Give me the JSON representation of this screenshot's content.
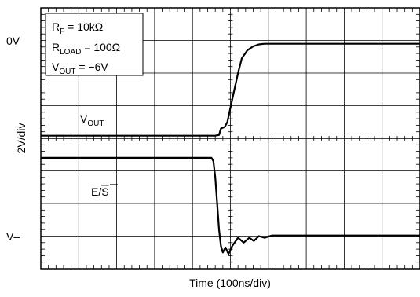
{
  "chart_data": {
    "type": "line",
    "xlabel": "Time (100ns/div)",
    "ylabel": "2V/div",
    "grid": true,
    "x_divisions": 10,
    "y_divisions": 8,
    "x_units_per_div": "100ns",
    "y_units_per_div": "2V",
    "conditions": [
      "R_F = 10kΩ",
      "R_LOAD = 100Ω",
      "V_OUT = −6V"
    ],
    "left_labels": {
      "top": "0V",
      "bottom": "V–"
    },
    "series": [
      {
        "name": "V_OUT",
        "color": "#000000",
        "points": [
          [
            0.0,
            0.08
          ],
          [
            4.6,
            0.08
          ],
          [
            4.7,
            0.1
          ],
          [
            4.75,
            0.3
          ],
          [
            4.85,
            0.35
          ],
          [
            4.92,
            0.5
          ],
          [
            5.05,
            1.2
          ],
          [
            5.2,
            2.0
          ],
          [
            5.3,
            2.45
          ],
          [
            5.45,
            2.7
          ],
          [
            5.6,
            2.82
          ],
          [
            5.75,
            2.88
          ],
          [
            5.9,
            2.9
          ],
          [
            10.0,
            2.9
          ]
        ]
      },
      {
        "name": "E/S",
        "color": "#000000",
        "points": [
          [
            0.0,
            -0.6
          ],
          [
            4.5,
            -0.6
          ],
          [
            4.55,
            -0.7
          ],
          [
            4.6,
            -1.2
          ],
          [
            4.65,
            -2.0
          ],
          [
            4.7,
            -2.8
          ],
          [
            4.75,
            -3.3
          ],
          [
            4.8,
            -3.5
          ],
          [
            4.87,
            -3.35
          ],
          [
            4.95,
            -3.55
          ],
          [
            5.05,
            -3.3
          ],
          [
            5.2,
            -3.05
          ],
          [
            5.35,
            -3.2
          ],
          [
            5.5,
            -3.05
          ],
          [
            5.62,
            -3.15
          ],
          [
            5.75,
            -3.0
          ],
          [
            5.9,
            -3.05
          ],
          [
            6.1,
            -2.98
          ],
          [
            10.0,
            -2.98
          ]
        ]
      }
    ]
  },
  "annotations": {
    "rf_label": "R",
    "rf_sub": "F",
    "rf_value": " = 10kΩ",
    "rload_label": "R",
    "rload_sub": "LOAD",
    "rload_value": " = 100Ω",
    "vout_label": "V",
    "vout_sub": "OUT",
    "vout_value": " = −6V",
    "trace_vout_label": "V",
    "trace_vout_sub": "OUT",
    "trace_es_label": "E/",
    "trace_es_bar": "S"
  }
}
